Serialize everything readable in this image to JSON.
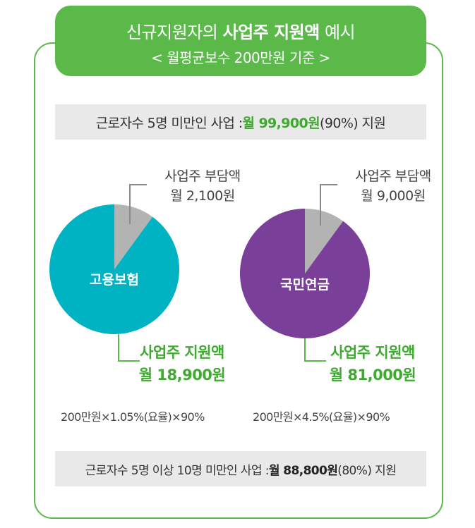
{
  "header": {
    "title_prefix": "신규지원자의 ",
    "title_bold": "사업주 지원액",
    "title_suffix": " 예시",
    "subtitle": "< 월평균보수 200만원 기준 >"
  },
  "banner_top": {
    "prefix": "근로자수 5명 미만인 사업 : ",
    "amount": "월 99,900원",
    "suffix": "(90%) 지원"
  },
  "banner_bottom": {
    "prefix": "근로자수 5명 이상 10명 미만인 사업 : ",
    "amount": "월 88,800원",
    "suffix": "(80%) 지원"
  },
  "colors": {
    "accent_green": "#5ab948",
    "employer_gray": "#b3b3b3",
    "employment_insurance": "#00b3c3",
    "national_pension": "#7a3f98"
  },
  "chart_data": [
    {
      "type": "pie",
      "center_label": "고용보험",
      "slices": [
        {
          "label_line1": "사업주 부담액",
          "label_line2": "월 2,100원",
          "value": 2100,
          "color": "#b3b3b3"
        },
        {
          "label_line1": "사업주 지원액",
          "label_line2": "월 18,900원",
          "value": 18900,
          "color": "#00b3c3"
        }
      ],
      "formula": "200만원×1.05%(요율)×90%"
    },
    {
      "type": "pie",
      "center_label": "국민연금",
      "slices": [
        {
          "label_line1": "사업주 부담액",
          "label_line2": "월 9,000원",
          "value": 9000,
          "color": "#b3b3b3"
        },
        {
          "label_line1": "사업주 지원액",
          "label_line2": "월 81,000원",
          "value": 81000,
          "color": "#7a3f98"
        }
      ],
      "formula": "200만원×4.5%(요율)×90%"
    }
  ]
}
